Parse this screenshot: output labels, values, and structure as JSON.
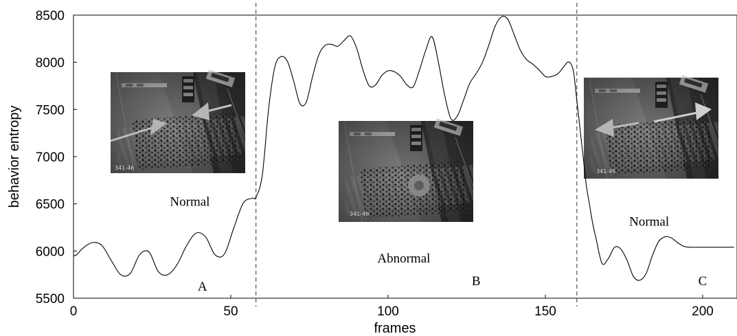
{
  "chart_data": {
    "type": "line",
    "title": "",
    "xlabel": "frames",
    "ylabel": "behavior entropy",
    "xlim": [
      0,
      210
    ],
    "ylim": [
      5500,
      8500
    ],
    "xticks": [
      0,
      50,
      100,
      150,
      200
    ],
    "yticks": [
      5500,
      6000,
      6500,
      7000,
      7500,
      8000,
      8500
    ],
    "grid": false,
    "series": [
      {
        "color": "#000000",
        "x": [
          0,
          1,
          3,
          6,
          9,
          12,
          15,
          18,
          21,
          24,
          27,
          30,
          33,
          36,
          39,
          42,
          45,
          48,
          51,
          54,
          57,
          58,
          60,
          62,
          64,
          66,
          68,
          70,
          72,
          74,
          76,
          78,
          80,
          82,
          84,
          86,
          88,
          90,
          92,
          94,
          96,
          98,
          100,
          102,
          104,
          106,
          108,
          110,
          112,
          114,
          116,
          118,
          120,
          122,
          124,
          126,
          128,
          130,
          132,
          134,
          136,
          138,
          140,
          142,
          144,
          146,
          148,
          150,
          152,
          154,
          156,
          157,
          158,
          159,
          160,
          161,
          162,
          163,
          164,
          165,
          166,
          168,
          170,
          172,
          174,
          176,
          178,
          180,
          182,
          184,
          186,
          188,
          190,
          192,
          194,
          196,
          198,
          200,
          205,
          210
        ],
        "y": [
          5950,
          5960,
          6030,
          6090,
          6060,
          5900,
          5750,
          5760,
          5960,
          5990,
          5780,
          5750,
          5860,
          6060,
          6190,
          6150,
          5960,
          5970,
          6250,
          6510,
          6560,
          6570,
          6800,
          7500,
          7950,
          8060,
          8010,
          7800,
          7560,
          7580,
          7850,
          8080,
          8180,
          8190,
          8170,
          8230,
          8280,
          8150,
          7920,
          7750,
          7760,
          7860,
          7910,
          7900,
          7850,
          7760,
          7740,
          7920,
          8130,
          8270,
          8000,
          7650,
          7400,
          7430,
          7600,
          7780,
          7880,
          8000,
          8180,
          8380,
          8480,
          8460,
          8300,
          8130,
          8030,
          7980,
          7920,
          7850,
          7850,
          7880,
          7960,
          8000,
          7990,
          7890,
          7600,
          7300,
          7000,
          6700,
          6500,
          6300,
          6150,
          5870,
          5920,
          6040,
          6020,
          5900,
          5730,
          5690,
          5760,
          5950,
          6100,
          6150,
          6140,
          6090,
          6050,
          6040,
          6040,
          6040,
          6040,
          6040
        ]
      }
    ],
    "vlines": [
      58,
      160
    ],
    "annotations": [
      {
        "text": "Normal",
        "x": 37,
        "y": 6480
      },
      {
        "text": "Abnormal",
        "x": 105,
        "y": 5880
      },
      {
        "text": "Normal",
        "x": 183,
        "y": 6270
      },
      {
        "text": "A",
        "x": 41,
        "y": 5580
      },
      {
        "text": "B",
        "x": 128,
        "y": 5640
      },
      {
        "text": "C",
        "x": 200,
        "y": 5640
      }
    ],
    "inset_images": [
      {
        "timestamp": "341-46"
      },
      {
        "timestamp": "341-46"
      },
      {
        "timestamp": "341-46"
      }
    ]
  }
}
